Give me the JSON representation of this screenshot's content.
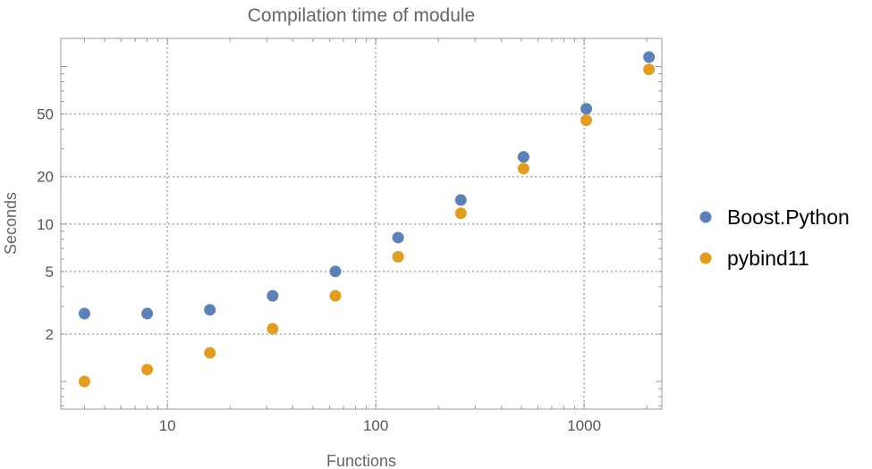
{
  "chart_data": {
    "type": "scatter",
    "title": "Compilation time of module",
    "xlabel": "Functions",
    "ylabel": "Seconds",
    "xscale": "log",
    "yscale": "log",
    "xlim": [
      3.08,
      2360
    ],
    "ylim": [
      0.667,
      151
    ],
    "grid": true,
    "legend_position": "right",
    "x_ticks": [
      10,
      100,
      1000
    ],
    "x_tick_labels": [
      "10",
      "100",
      "1000"
    ],
    "y_ticks": [
      2,
      5,
      10,
      20,
      50
    ],
    "y_tick_labels": [
      "2",
      "5",
      "10",
      "20",
      "50"
    ],
    "x": [
      4,
      8,
      16,
      32,
      64,
      128,
      256,
      512,
      1024,
      2048
    ],
    "series": [
      {
        "name": "Boost.Python",
        "color": "#5E81B5",
        "values": [
          2.7,
          2.7,
          2.85,
          3.5,
          5.0,
          8.2,
          14.2,
          26.7,
          54,
          115
        ]
      },
      {
        "name": "pybind11",
        "color": "#E19C24",
        "values": [
          1.0,
          1.19,
          1.52,
          2.16,
          3.5,
          6.2,
          11.7,
          22.5,
          45.6,
          96
        ]
      }
    ]
  }
}
